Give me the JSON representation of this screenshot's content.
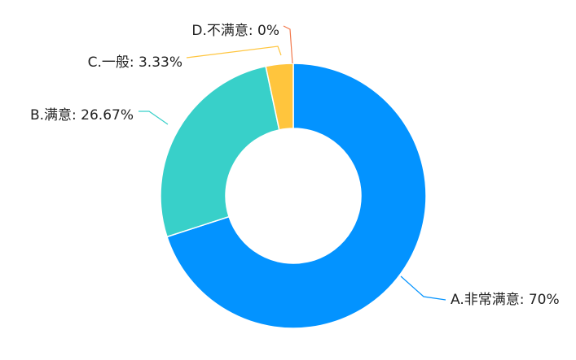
{
  "chart_data": {
    "type": "pie",
    "variant": "donut",
    "title": "",
    "slices": [
      {
        "label": "A.非常满意: 70%",
        "name": "A.非常满意",
        "value": 70,
        "color": "#0393FF"
      },
      {
        "label": "B.满意: 26.67%",
        "name": "B.满意",
        "value": 26.67,
        "color": "#38D0C9"
      },
      {
        "label": "C.一般: 3.33%",
        "name": "C.一般",
        "value": 3.33,
        "color": "#FFC53D"
      },
      {
        "label": "D.不满意: 0%",
        "name": "D.不满意",
        "value": 0,
        "color": "#F2784B"
      }
    ],
    "start_angle": "top",
    "direction": "clockwise",
    "legend": "none",
    "labels": "outside-with-leader-lines"
  }
}
